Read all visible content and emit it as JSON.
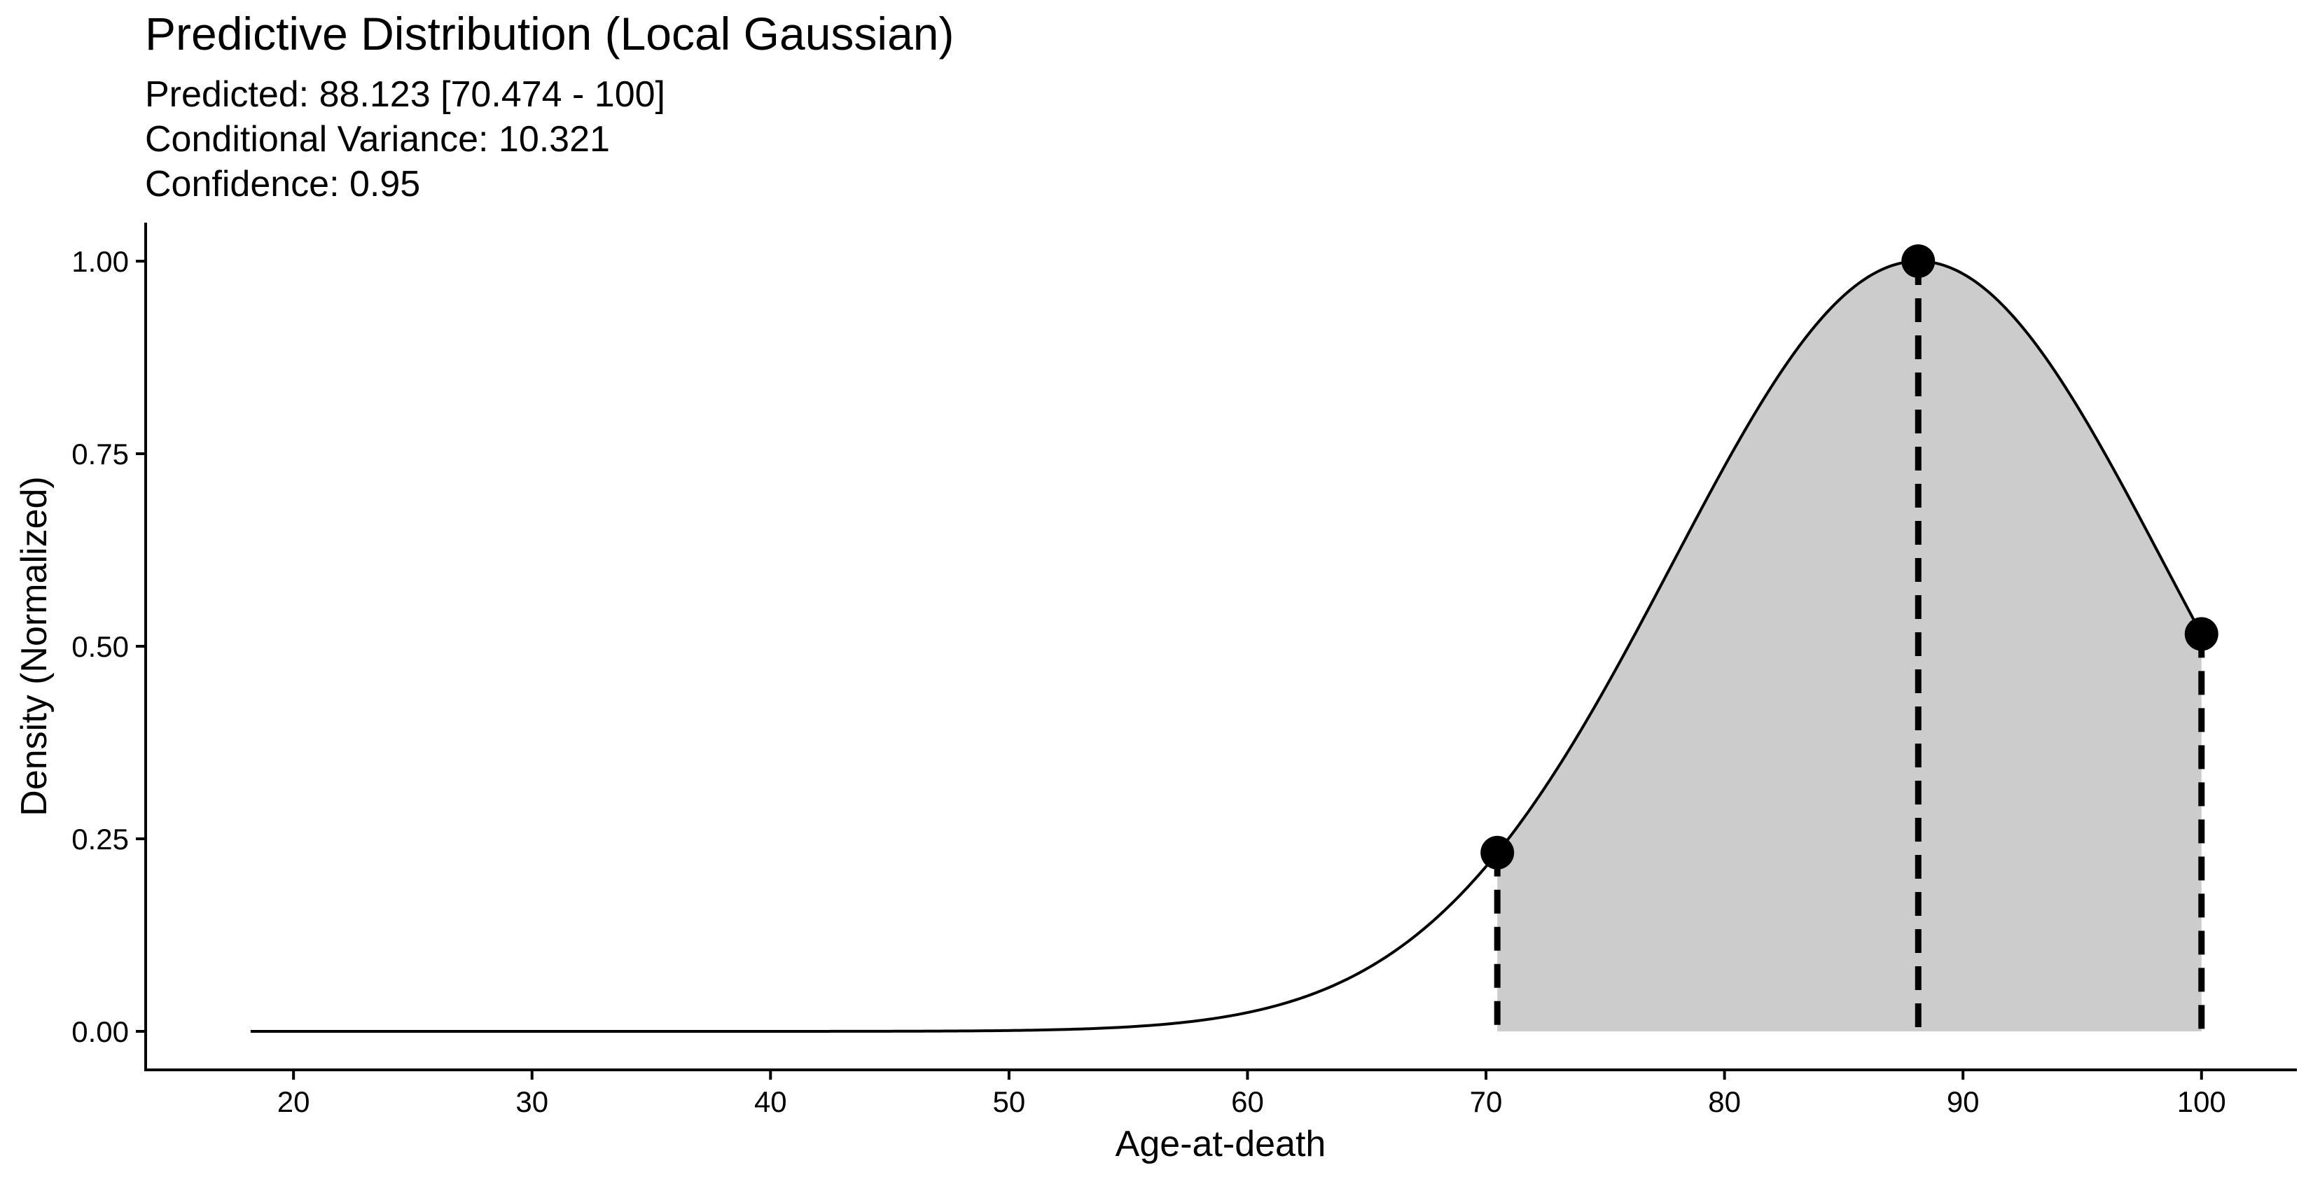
{
  "chart_data": {
    "type": "area",
    "title": "Predictive Distribution (Local Gaussian)",
    "subtitle_lines": [
      "Predicted: 88.123 [70.474 - 100]",
      "Conditional Variance: 10.321",
      "Confidence: 0.95"
    ],
    "xlabel": "Age-at-death",
    "ylabel": "Density (Normalized)",
    "xlim": [
      13.8,
      104.0
    ],
    "ylim": [
      -0.05,
      1.05
    ],
    "x_ticks": [
      20,
      30,
      40,
      50,
      60,
      70,
      80,
      90,
      100
    ],
    "x_tick_labels": [
      "20",
      "30",
      "40",
      "50",
      "60",
      "70",
      "80",
      "90",
      "100"
    ],
    "y_ticks": [
      0,
      0.25,
      0.5,
      0.75,
      1.0
    ],
    "y_tick_labels": [
      "0.00",
      "0.25",
      "0.50",
      "0.75",
      "1.00"
    ],
    "curve": {
      "x_min": 18.2,
      "x_max": 100,
      "mode": 88.123,
      "sd": 10.321
    },
    "interval": {
      "lower": 70.474,
      "upper": 100
    },
    "markers": [
      {
        "x": 70.474,
        "y": 0.232
      },
      {
        "x": 88.123,
        "y": 1.0
      },
      {
        "x": 100,
        "y": 0.516
      }
    ],
    "grid": false,
    "legend": "none",
    "colors": {
      "fill": "#cccccc",
      "line": "#000000",
      "marker": "#000000"
    }
  }
}
